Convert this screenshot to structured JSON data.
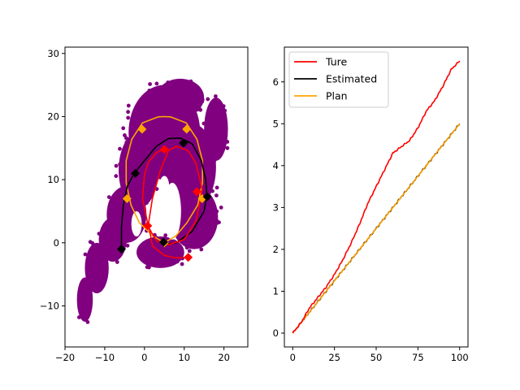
{
  "chart_data": [
    {
      "type": "scatter",
      "title": "",
      "xlabel": "",
      "ylabel": "",
      "xlim": [
        -20,
        26
      ],
      "ylim": [
        -16.5,
        31
      ],
      "xticks": [
        -20,
        -10,
        0,
        10,
        20
      ],
      "yticks": [
        -10,
        0,
        10,
        20,
        30
      ],
      "grid": false,
      "colors": {
        "cloud": "#800080",
        "true_path": "#ff0000",
        "estimated_path": "#000000",
        "plan_path": "#ffa500"
      },
      "true_path": {
        "x": [
          11,
          8,
          5,
          2,
          1,
          2,
          4,
          6,
          8,
          11,
          13,
          14.5,
          13,
          10,
          6,
          3,
          1,
          -0.5,
          0,
          1,
          3,
          5
        ],
        "y": [
          -2.3,
          -2.4,
          -2,
          -0.5,
          3,
          7,
          11.5,
          14.6,
          15.3,
          14.6,
          12.5,
          8.5,
          3.5,
          0.5,
          -0.3,
          0.3,
          2.5,
          7,
          10.8,
          12.8,
          14.3,
          14.8
        ],
        "markers_x": [
          11,
          0.8,
          5,
          13.2
        ],
        "markers_y": [
          -2.3,
          2.7,
          14.8,
          8.1
        ]
      },
      "estimated_path": {
        "x": [
          -5.8,
          -5.8,
          -5.3,
          -4.3,
          -2.6,
          0,
          3,
          6,
          9,
          12,
          14.3,
          15.4,
          15.7,
          15,
          12,
          8,
          5
        ],
        "y": [
          -1.0,
          2.5,
          6,
          9,
          11,
          13,
          15.3,
          16.5,
          16.6,
          15.7,
          13,
          10,
          7.5,
          5,
          1.8,
          0,
          -0.3
        ],
        "markers_x": [
          -5.8,
          -2.3,
          9.8,
          15.8,
          4.8
        ],
        "markers_y": [
          -1.0,
          11.0,
          15.8,
          7.3,
          0.1
        ]
      },
      "plan_path": {
        "x": [
          5,
          2.1,
          -1.3,
          -3.4,
          -4.6,
          -4.6,
          -3.2,
          -0.5,
          3.5,
          5,
          6.5,
          10.5,
          13.2,
          14.6,
          14.6,
          13.4,
          10.7,
          7.9,
          5
        ],
        "y": [
          0,
          1.1,
          3.2,
          6,
          9.5,
          13,
          16.4,
          19,
          19.95,
          20,
          19.95,
          19,
          16.4,
          13,
          9.5,
          6,
          3.2,
          1.1,
          0
        ],
        "markers_x": [
          5,
          -4.4,
          10.6,
          -0.6,
          14.5
        ],
        "markers_y": [
          0,
          7,
          18,
          18,
          7
        ]
      },
      "cloud_blobs": [
        {
          "cx": 5,
          "cy": 17.5,
          "rx": 9,
          "ry": 7.5
        },
        {
          "cx": 11.5,
          "cy": 12,
          "rx": 6.5,
          "ry": 7
        },
        {
          "cx": 12.5,
          "cy": 4,
          "rx": 6,
          "ry": 5
        },
        {
          "cx": -1.5,
          "cy": 11.5,
          "rx": 5,
          "ry": 6
        },
        {
          "cx": -4.5,
          "cy": 4.5,
          "rx": 5,
          "ry": 4.5
        },
        {
          "cx": -8,
          "cy": 0.5,
          "rx": 3.5,
          "ry": 3.5
        },
        {
          "cx": -12,
          "cy": -4,
          "rx": 3,
          "ry": 4
        },
        {
          "cx": -15,
          "cy": -9,
          "rx": 2,
          "ry": 3.5
        },
        {
          "cx": 4,
          "cy": -1.5,
          "rx": 6,
          "ry": 2.5
        },
        {
          "cx": 9,
          "cy": 23,
          "rx": 6,
          "ry": 3
        },
        {
          "cx": 18,
          "cy": 18,
          "rx": 3,
          "ry": 5
        }
      ]
    },
    {
      "type": "line",
      "title": "",
      "xlabel": "",
      "ylabel": "",
      "xlim": [
        -5,
        105
      ],
      "ylim": [
        -0.33,
        6.83
      ],
      "xticks": [
        0,
        25,
        50,
        75,
        100
      ],
      "yticks": [
        0,
        1,
        2,
        3,
        4,
        5,
        6
      ],
      "grid": false,
      "legend_position": "top-left",
      "x": [
        0,
        5,
        10,
        15,
        20,
        25,
        30,
        35,
        40,
        45,
        50,
        55,
        60,
        65,
        70,
        75,
        80,
        85,
        90,
        95,
        100
      ],
      "series": [
        {
          "name": "Ture",
          "color": "#ff0000",
          "values": [
            0,
            0.25,
            0.6,
            0.85,
            1.1,
            1.4,
            1.75,
            2.15,
            2.6,
            3.1,
            3.5,
            3.9,
            4.3,
            4.45,
            4.6,
            4.9,
            5.3,
            5.55,
            5.9,
            6.3,
            6.5
          ]
        },
        {
          "name": "Estimated",
          "color": "#000000",
          "values": [
            0,
            0.25,
            0.5,
            0.75,
            1.0,
            1.25,
            1.5,
            1.75,
            2.0,
            2.25,
            2.5,
            2.75,
            3.0,
            3.25,
            3.5,
            3.75,
            4.0,
            4.25,
            4.5,
            4.75,
            5.0
          ]
        },
        {
          "name": "Plan",
          "color": "#ffa500",
          "values": [
            0,
            0.25,
            0.5,
            0.75,
            1.0,
            1.25,
            1.5,
            1.75,
            2.0,
            2.25,
            2.5,
            2.75,
            3.0,
            3.25,
            3.5,
            3.75,
            4.0,
            4.25,
            4.5,
            4.75,
            5.0
          ]
        }
      ]
    }
  ]
}
